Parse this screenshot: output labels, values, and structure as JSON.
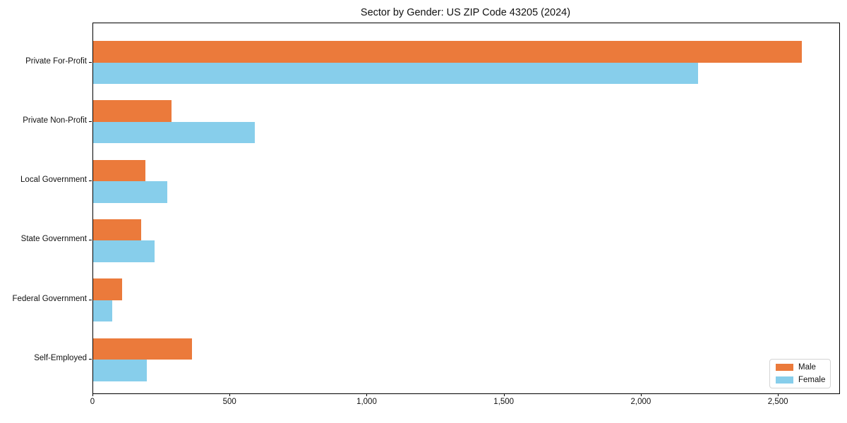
{
  "colors": {
    "male": "#EB7A3B",
    "female": "#87CEEB",
    "spine": "#000000",
    "legend_border": "#d4d4d4",
    "text": "#111111",
    "background": "#ffffff"
  },
  "chart_data": {
    "type": "bar",
    "orientation": "horizontal",
    "title": "Sector by Gender: US ZIP Code 43205 (2024)",
    "categories": [
      "Private For-Profit",
      "Private Non-Profit",
      "Local Government",
      "State Government",
      "Federal Government",
      "Self-Employed"
    ],
    "series": [
      {
        "name": "Male",
        "color": "#EB7A3B",
        "values": [
          2585,
          285,
          190,
          175,
          105,
          360
        ]
      },
      {
        "name": "Female",
        "color": "#87CEEB",
        "values": [
          2205,
          590,
          270,
          225,
          70,
          195
        ]
      }
    ],
    "xlabel": "",
    "ylabel": "",
    "xlim": [
      0,
      2721
    ],
    "x_ticks": [
      {
        "value": 0,
        "label": "0"
      },
      {
        "value": 500,
        "label": "500"
      },
      {
        "value": 1000,
        "label": "1,000"
      },
      {
        "value": 1500,
        "label": "1,500"
      },
      {
        "value": 2000,
        "label": "2,000"
      },
      {
        "value": 2500,
        "label": "2,500"
      }
    ],
    "grid": false,
    "legend": {
      "position": "lower right",
      "entries": [
        {
          "label": "Male",
          "color": "#EB7A3B"
        },
        {
          "label": "Female",
          "color": "#87CEEB"
        }
      ]
    }
  }
}
